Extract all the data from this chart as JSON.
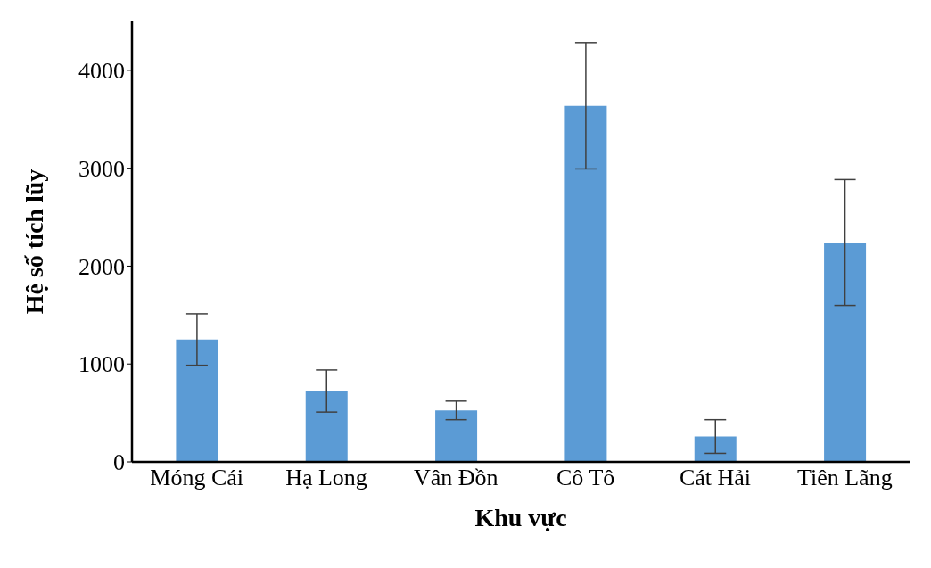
{
  "chart_data": {
    "type": "bar",
    "xlabel": "Khu vực",
    "ylabel": "Hệ số tích lũy",
    "categories": [
      "Móng Cái",
      "Hạ Long",
      "Vân Đồn",
      "Cô Tô",
      "Cát Hải",
      "Tiên Lãng"
    ],
    "values": [
      1250,
      724,
      526,
      3638,
      259,
      2241
    ],
    "errors": [
      263,
      215,
      95,
      645,
      172,
      643
    ],
    "color": "#5b9bd5",
    "ylim": [
      0,
      4500
    ],
    "yticks": [
      0,
      1000,
      2000,
      3000,
      4000
    ],
    "grid": false,
    "legend": false
  }
}
